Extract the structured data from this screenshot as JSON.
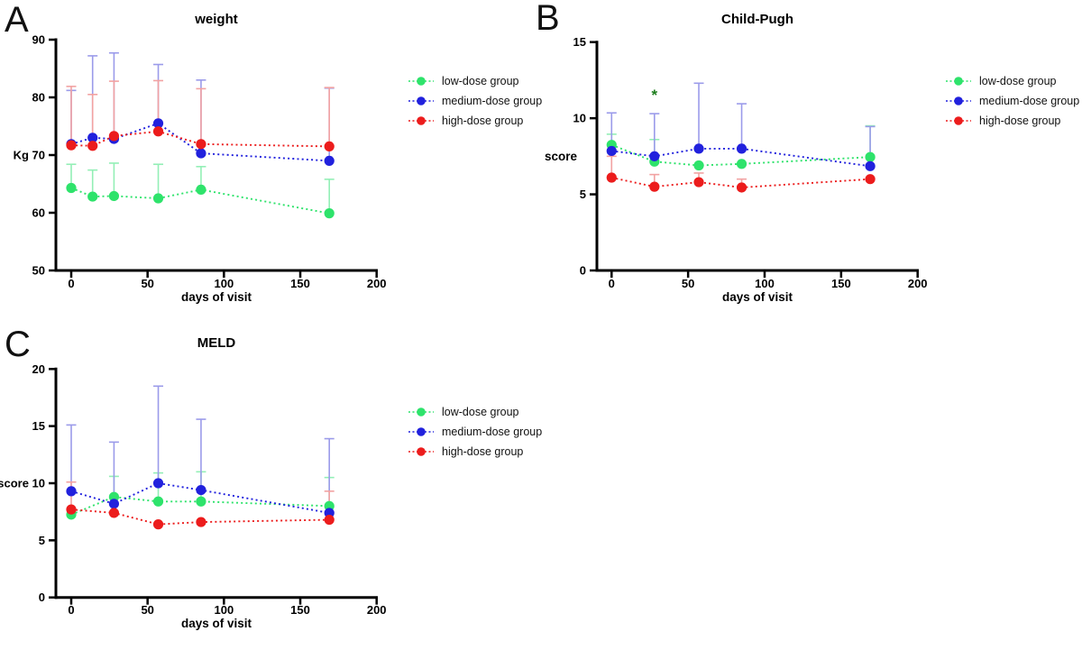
{
  "colors": {
    "low": "#2ee36b",
    "low_light": "#93efb6",
    "medium": "#2121dd",
    "medium_light": "#9b9bea",
    "high": "#ec1c1c",
    "high_light": "#f2a2a2",
    "axis": "#000000",
    "annotation_green": "#1b7d1b"
  },
  "legend": {
    "items": [
      {
        "label": "low-dose group",
        "color_key": "low"
      },
      {
        "label": "medium-dose group",
        "color_key": "medium"
      },
      {
        "label": "high-dose group",
        "color_key": "high"
      }
    ]
  },
  "chart_data": [
    {
      "type": "line",
      "panel_letter": "A",
      "title": "weight",
      "xlabel": "days of visit",
      "ylabel": "Kg",
      "ylabel_at_tick": 70,
      "xlim": [
        0,
        200
      ],
      "ylim": [
        50,
        90
      ],
      "xticks": [
        0,
        50,
        100,
        150,
        200
      ],
      "yticks": [
        50,
        60,
        70,
        80,
        90
      ],
      "x": [
        0,
        14,
        28,
        57,
        85,
        169
      ],
      "grid": false,
      "legend_position": "right",
      "series": [
        {
          "name": "low-dose group",
          "color_key": "low",
          "values": [
            64.3,
            62.8,
            62.9,
            62.5,
            64.0,
            59.9
          ],
          "err_top": [
            68.4,
            67.4,
            68.6,
            68.4,
            68.0,
            65.8
          ]
        },
        {
          "name": "medium-dose group",
          "color_key": "medium",
          "values": [
            71.9,
            73.0,
            72.8,
            75.5,
            70.3,
            69.0
          ],
          "err_top": [
            81.2,
            87.2,
            87.7,
            85.7,
            83.0,
            81.6
          ]
        },
        {
          "name": "high-dose group",
          "color_key": "high",
          "values": [
            71.7,
            71.6,
            73.3,
            74.1,
            71.9,
            71.5
          ],
          "err_top": [
            81.9,
            80.5,
            82.8,
            82.9,
            81.5,
            81.7
          ]
        }
      ],
      "annotations": []
    },
    {
      "type": "line",
      "panel_letter": "B",
      "title": "Child-Pugh",
      "xlabel": "days of visit",
      "ylabel": "score",
      "ylabel_at_tick": null,
      "xlim": [
        0,
        200
      ],
      "ylim": [
        0,
        15
      ],
      "xticks": [
        0,
        50,
        100,
        150,
        200
      ],
      "yticks": [
        0,
        5,
        10,
        15
      ],
      "x": [
        0,
        28,
        57,
        85,
        169
      ],
      "grid": false,
      "legend_position": "right",
      "series": [
        {
          "name": "low-dose group",
          "color_key": "low",
          "values": [
            8.25,
            7.15,
            6.9,
            7.0,
            7.45
          ],
          "err_top": [
            8.95,
            8.6,
            6.9,
            7.0,
            9.5
          ]
        },
        {
          "name": "medium-dose group",
          "color_key": "medium",
          "values": [
            7.85,
            7.5,
            8.0,
            8.0,
            6.85
          ],
          "err_top": [
            10.35,
            10.3,
            12.3,
            10.95,
            9.45
          ]
        },
        {
          "name": "high-dose group",
          "color_key": "high",
          "values": [
            6.1,
            5.5,
            5.8,
            5.45,
            6.0
          ],
          "err_top": [
            7.5,
            6.3,
            6.4,
            6.0,
            6.0
          ]
        }
      ],
      "annotations": [
        {
          "text": "*",
          "x": 28,
          "y": 11.2,
          "color_key": "annotation_green"
        }
      ]
    },
    {
      "type": "line",
      "panel_letter": "C",
      "title": "MELD",
      "xlabel": "days of visit",
      "ylabel": "score",
      "ylabel_at_tick": 10,
      "xlim": [
        0,
        200
      ],
      "ylim": [
        0,
        20
      ],
      "xticks": [
        0,
        50,
        100,
        150,
        200
      ],
      "yticks": [
        0,
        5,
        10,
        15,
        20
      ],
      "x": [
        0,
        28,
        57,
        85,
        169
      ],
      "grid": false,
      "legend_position": "right",
      "series": [
        {
          "name": "low-dose group",
          "color_key": "low",
          "values": [
            7.25,
            8.8,
            8.4,
            8.4,
            8.0
          ],
          "err_top": [
            7.25,
            10.6,
            10.9,
            11.0,
            10.5
          ]
        },
        {
          "name": "medium-dose group",
          "color_key": "medium",
          "values": [
            9.3,
            8.2,
            10.0,
            9.4,
            7.4
          ],
          "err_top": [
            15.1,
            13.6,
            18.5,
            15.6,
            13.9
          ]
        },
        {
          "name": "high-dose group",
          "color_key": "high",
          "values": [
            7.7,
            7.4,
            6.4,
            6.6,
            6.8
          ],
          "err_top": [
            10.1,
            7.4,
            6.4,
            6.6,
            9.3
          ]
        }
      ],
      "annotations": []
    }
  ]
}
